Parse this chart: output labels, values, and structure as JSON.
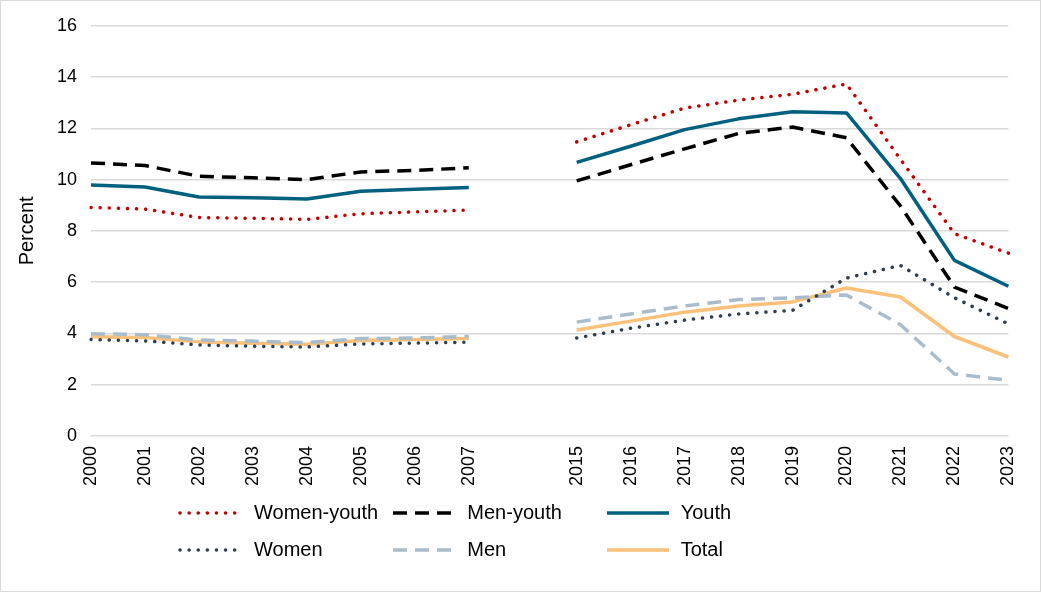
{
  "chart_data": {
    "type": "line",
    "ylabel": "Percent",
    "categories": [
      "2000",
      "2001",
      "2002",
      "2003",
      "2004",
      "2005",
      "2006",
      "2007",
      null,
      "2015",
      "2016",
      "2017",
      "2018",
      "2019",
      "2020",
      "2021",
      "2022",
      "2023"
    ],
    "ylim": [
      0,
      16
    ],
    "yticks": [
      0,
      2,
      4,
      6,
      8,
      10,
      12,
      14,
      16
    ],
    "grid": "y",
    "legend": "bottom",
    "marker": "none",
    "series": [
      {
        "name": "Women-youth",
        "color": "#c00000",
        "line_style": "dotted",
        "values": [
          8.91,
          8.85,
          8.52,
          8.49,
          8.45,
          8.67,
          8.74,
          8.81,
          null,
          11.47,
          12.14,
          12.79,
          13.1,
          13.33,
          13.73,
          10.79,
          7.89,
          7.13
        ]
      },
      {
        "name": "Men-youth",
        "color": "#000000",
        "line_style": "dashed",
        "values": [
          10.65,
          10.55,
          10.13,
          10.07,
          10.0,
          10.3,
          10.36,
          10.46,
          null,
          9.95,
          10.58,
          11.2,
          11.8,
          12.05,
          11.63,
          8.97,
          5.81,
          4.97
        ]
      },
      {
        "name": "Youth",
        "color": "#00607f",
        "line_style": "solid",
        "values": [
          9.79,
          9.71,
          9.32,
          9.29,
          9.24,
          9.55,
          9.62,
          9.69,
          null,
          10.67,
          11.3,
          11.95,
          12.37,
          12.65,
          12.6,
          10.04,
          6.85,
          5.84
        ]
      },
      {
        "name": "Women",
        "color": "#2e3d4f",
        "line_style": "dotted",
        "values": [
          3.76,
          3.71,
          3.55,
          3.5,
          3.47,
          3.59,
          3.62,
          3.66,
          null,
          3.82,
          4.2,
          4.52,
          4.76,
          4.9,
          6.16,
          6.65,
          5.39,
          4.37
        ]
      },
      {
        "name": "Men",
        "color": "#a9bccc",
        "line_style": "dashed",
        "values": [
          3.99,
          3.95,
          3.74,
          3.7,
          3.64,
          3.8,
          3.82,
          3.88,
          null,
          4.44,
          4.76,
          5.07,
          5.32,
          5.39,
          5.5,
          4.34,
          2.42,
          2.17
        ]
      },
      {
        "name": "Total",
        "color": "#fbc07a",
        "line_style": "solid",
        "values": [
          3.87,
          3.84,
          3.67,
          3.62,
          3.58,
          3.72,
          3.76,
          3.8,
          null,
          4.13,
          4.48,
          4.83,
          5.07,
          5.23,
          5.77,
          5.42,
          3.88,
          3.08
        ]
      }
    ]
  }
}
